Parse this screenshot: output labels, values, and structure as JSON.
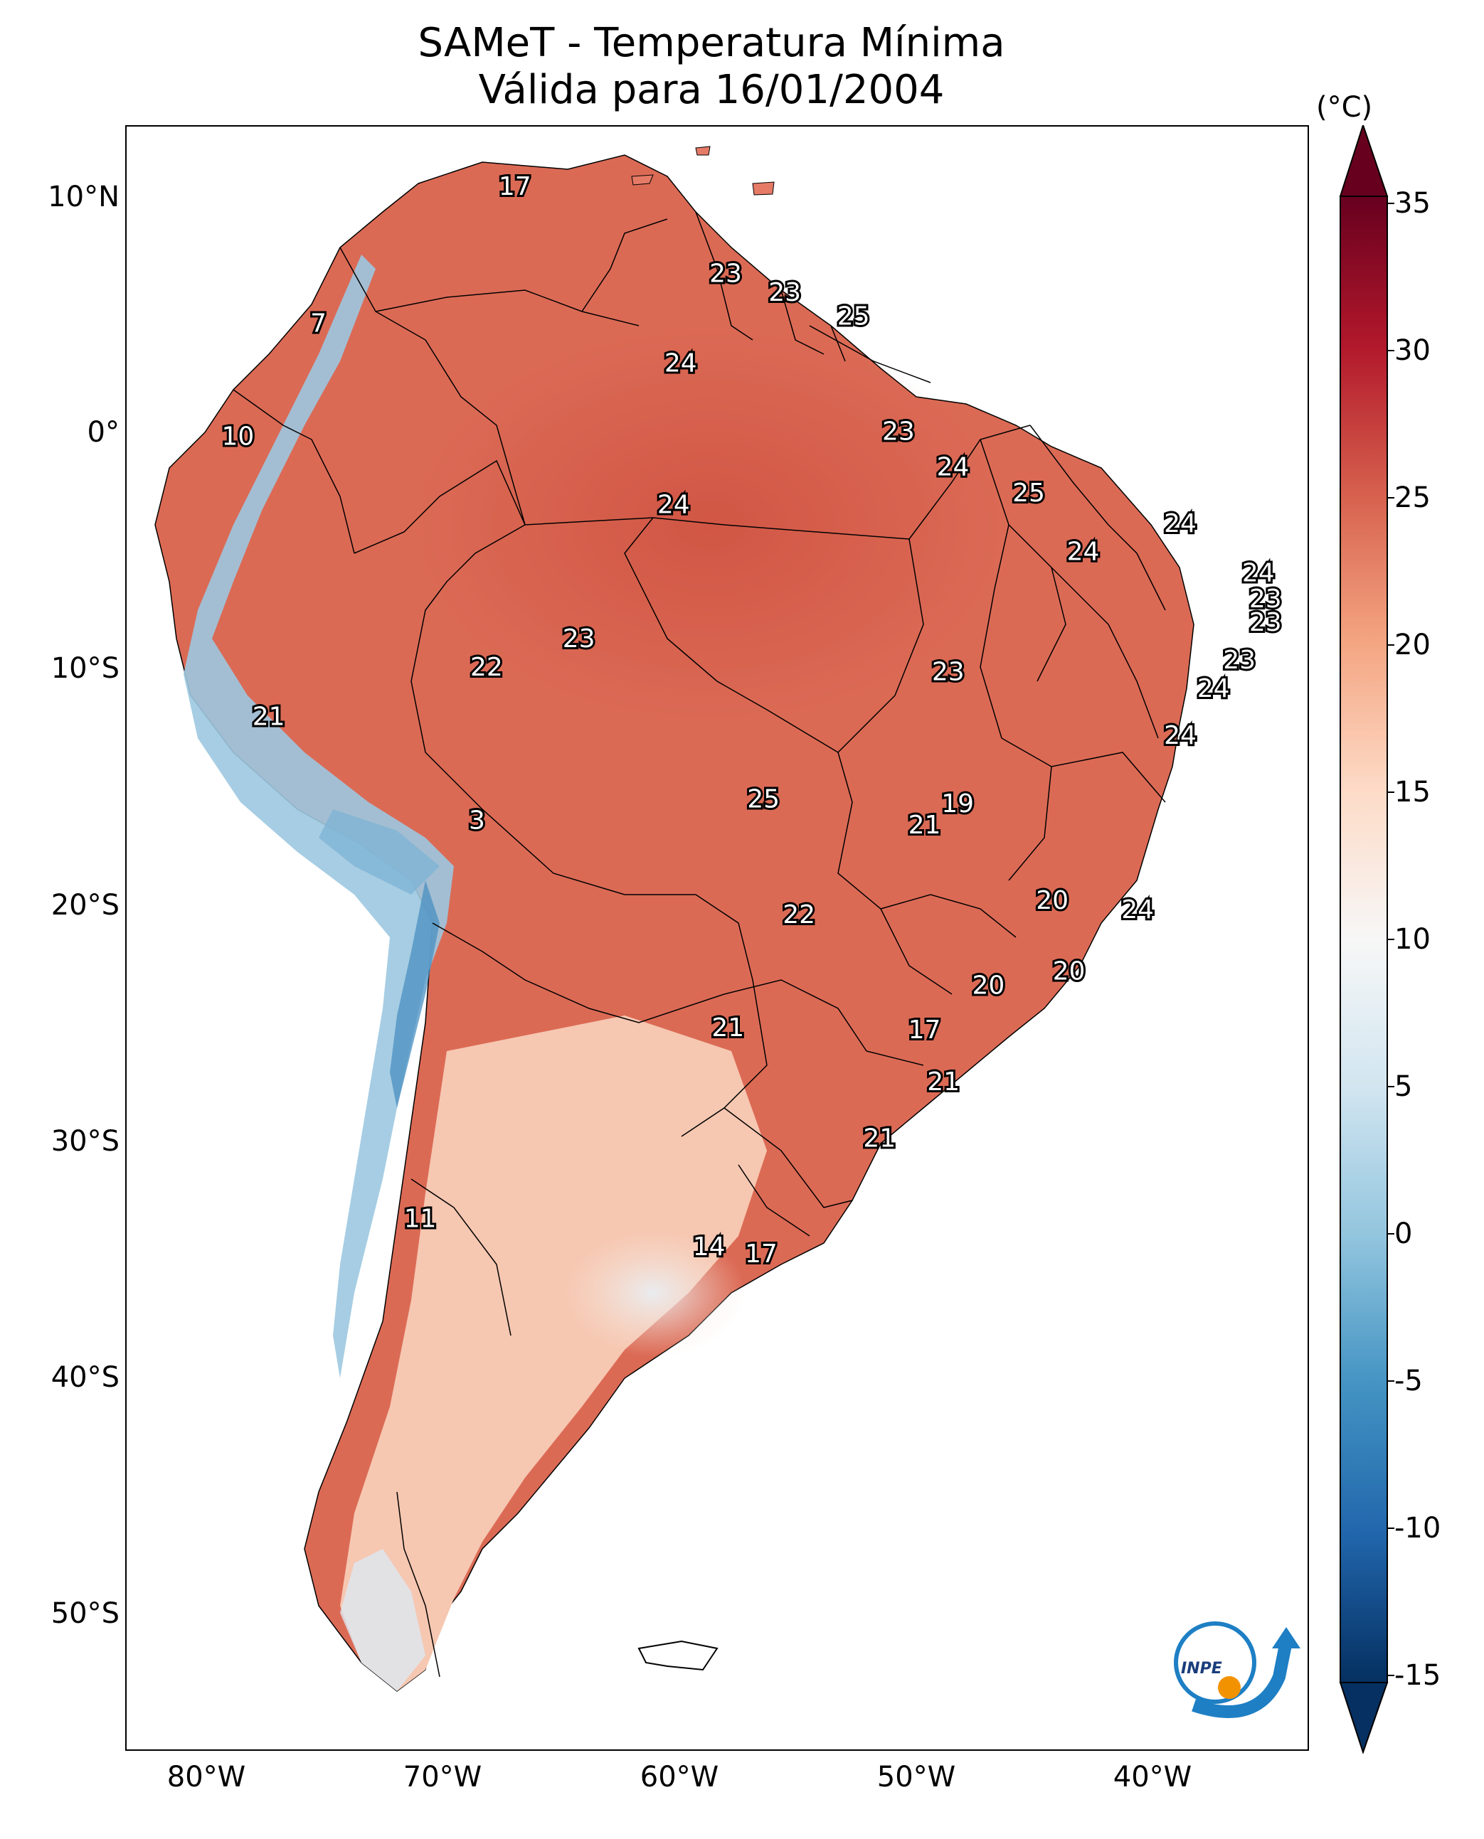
{
  "title": {
    "line1": "SAMeT - Temperatura Mínima",
    "line2": "Válida para 16/01/2004"
  },
  "map": {
    "region": "South America",
    "variable": "minimum temperature",
    "lat_ticks": [
      "10°N",
      "0°",
      "10°S",
      "20°S",
      "30°S",
      "40°S",
      "50°S"
    ],
    "lon_ticks": [
      "80°W",
      "70°W",
      "60°W",
      "50°W",
      "40°W"
    ],
    "extent": {
      "lon": [
        -83,
        -33
      ],
      "lat": [
        -56,
        13
      ]
    },
    "station_values": [
      {
        "label": "17",
        "lon": -66.6,
        "lat": 10.4
      },
      {
        "label": "23",
        "lon": -57.7,
        "lat": 6.7
      },
      {
        "label": "23",
        "lon": -55.2,
        "lat": 5.9
      },
      {
        "label": "25",
        "lon": -52.3,
        "lat": 4.9
      },
      {
        "label": "7",
        "lon": -74.9,
        "lat": 4.6
      },
      {
        "label": "24",
        "lon": -59.6,
        "lat": 2.9
      },
      {
        "label": "23",
        "lon": -50.4,
        "lat": 0.0
      },
      {
        "label": "10",
        "lon": -78.3,
        "lat": -0.2
      },
      {
        "label": "24",
        "lon": -48.1,
        "lat": -1.5
      },
      {
        "label": "25",
        "lon": -44.9,
        "lat": -2.6
      },
      {
        "label": "24",
        "lon": -59.9,
        "lat": -3.1
      },
      {
        "label": "24",
        "lon": -38.5,
        "lat": -3.9
      },
      {
        "label": "24",
        "lon": -42.6,
        "lat": -5.1
      },
      {
        "label": "24",
        "lon": -35.2,
        "lat": -6.0
      },
      {
        "label": "23",
        "lon": -34.9,
        "lat": -7.1
      },
      {
        "label": "23",
        "lon": -34.9,
        "lat": -8.1
      },
      {
        "label": "23",
        "lon": -63.9,
        "lat": -8.8
      },
      {
        "label": "23",
        "lon": -36.0,
        "lat": -9.7
      },
      {
        "label": "22",
        "lon": -67.8,
        "lat": -10.0
      },
      {
        "label": "23",
        "lon": -48.3,
        "lat": -10.2
      },
      {
        "label": "24",
        "lon": -37.1,
        "lat": -10.9
      },
      {
        "label": "21",
        "lon": -77.0,
        "lat": -12.1
      },
      {
        "label": "24",
        "lon": -38.5,
        "lat": -12.9
      },
      {
        "label": "25",
        "lon": -56.1,
        "lat": -15.6
      },
      {
        "label": "19",
        "lon": -47.9,
        "lat": -15.8
      },
      {
        "label": "21",
        "lon": -49.3,
        "lat": -16.7
      },
      {
        "label": "3",
        "lon": -68.2,
        "lat": -16.5
      },
      {
        "label": "20",
        "lon": -43.9,
        "lat": -19.9
      },
      {
        "label": "22",
        "lon": -54.6,
        "lat": -20.5
      },
      {
        "label": "24",
        "lon": -40.3,
        "lat": -20.3
      },
      {
        "label": "20",
        "lon": -43.2,
        "lat": -22.9
      },
      {
        "label": "20",
        "lon": -46.6,
        "lat": -23.5
      },
      {
        "label": "21",
        "lon": -57.6,
        "lat": -25.3
      },
      {
        "label": "17",
        "lon": -49.3,
        "lat": -25.4
      },
      {
        "label": "21",
        "lon": -48.5,
        "lat": -27.6
      },
      {
        "label": "21",
        "lon": -51.2,
        "lat": -30.0
      },
      {
        "label": "11",
        "lon": -70.6,
        "lat": -33.4
      },
      {
        "label": "14",
        "lon": -58.4,
        "lat": -34.6
      },
      {
        "label": "17",
        "lon": -56.2,
        "lat": -34.9
      }
    ]
  },
  "colorbar": {
    "unit": "(°C)",
    "ticks": [
      "35",
      "30",
      "25",
      "20",
      "15",
      "10",
      "5",
      "0",
      "-5",
      "-10",
      "-15"
    ],
    "range": [
      -15,
      35
    ],
    "colormap": "RdBu_r",
    "extend": "both",
    "colors": [
      "#053061",
      "#2166ac",
      "#4393c3",
      "#92c5de",
      "#d1e5f0",
      "#f7f7f7",
      "#fddbc7",
      "#f4a582",
      "#d6604d",
      "#b2182b",
      "#67001f"
    ]
  },
  "logo": {
    "text": "INPE",
    "colors": {
      "blue": "#1e7fc4",
      "orange": "#f39200"
    }
  }
}
